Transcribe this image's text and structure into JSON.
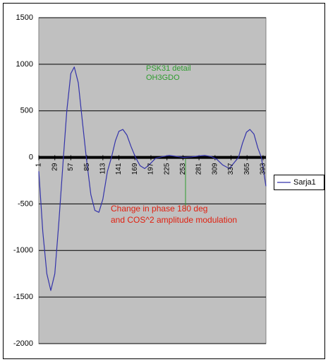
{
  "chart_data": {
    "type": "line",
    "annotations": [
      "PSK31 detail",
      "OH3GDO",
      "Change in phase 180 deg",
      "and  COS^2 amplitude modulation"
    ],
    "series": [
      {
        "name": "Sarja1",
        "color": "#3333aa",
        "x": [
          1,
          8,
          15,
          22,
          29,
          36,
          44,
          50,
          57,
          63,
          70,
          77,
          84,
          92,
          99,
          106,
          113,
          121,
          128,
          135,
          141,
          148,
          155,
          162,
          170,
          178,
          186,
          194,
          205,
          218,
          229,
          240,
          254,
          268,
          280,
          291,
          302,
          312,
          322,
          334,
          342,
          350,
          357,
          364,
          370,
          377,
          384,
          390,
          394,
          398
        ],
        "values": [
          -150,
          -800,
          -1250,
          -1430,
          -1250,
          -700,
          0,
          500,
          900,
          970,
          800,
          400,
          0,
          -400,
          -570,
          -590,
          -450,
          -150,
          0,
          180,
          280,
          300,
          240,
          120,
          0,
          -90,
          -120,
          -80,
          -10,
          10,
          20,
          12,
          0,
          5,
          15,
          20,
          10,
          -20,
          -80,
          -120,
          -60,
          0,
          150,
          270,
          300,
          250,
          100,
          0,
          -150,
          -310
        ]
      }
    ],
    "xlim": [
      1,
      398
    ],
    "xticks": [
      1,
      29,
      57,
      85,
      113,
      141,
      169,
      197,
      225,
      253,
      281,
      309,
      337,
      365,
      393
    ],
    "ylim": [
      -2000,
      1500
    ],
    "yticks": [
      -2000,
      -1500,
      -1000,
      -500,
      0,
      500,
      1000,
      1500
    ],
    "grid": true,
    "legend": "right"
  }
}
